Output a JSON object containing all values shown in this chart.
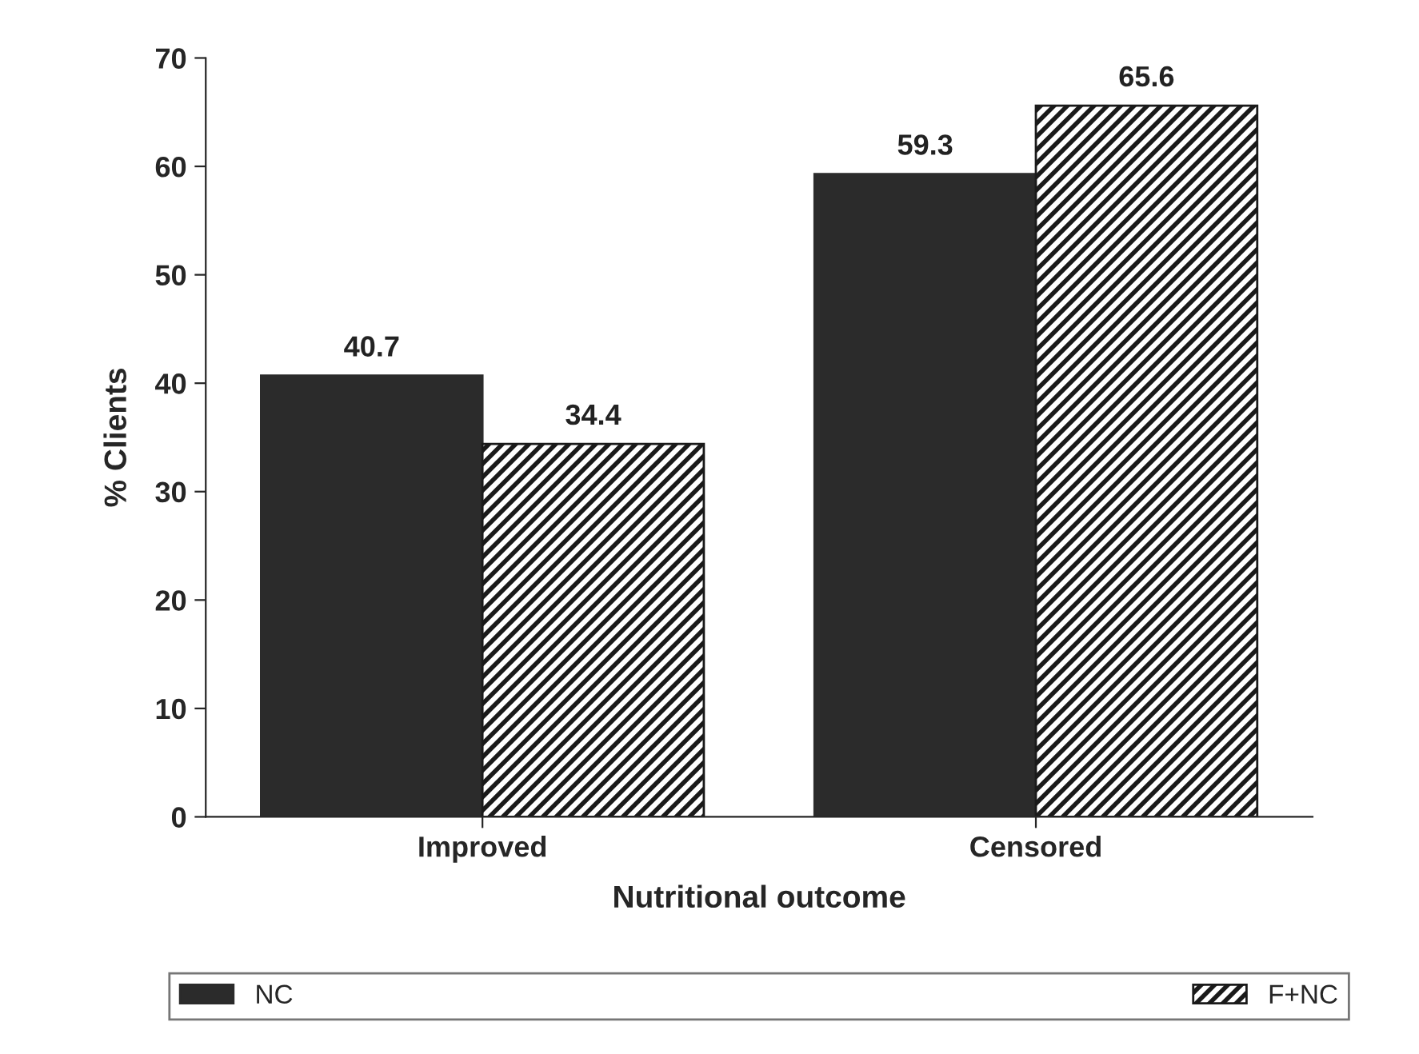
{
  "chart_data": {
    "type": "bar",
    "xlabel": "Nutritional outcome",
    "ylabel": "% Clients",
    "categories": [
      "Improved",
      "Censored"
    ],
    "series": [
      {
        "name": "NC",
        "color": "#2b2b2b",
        "values": [
          40.7,
          59.3
        ]
      },
      {
        "name": "F+NC",
        "color": "#1a1a1a",
        "values": [
          34.4,
          65.6
        ]
      }
    ],
    "ylim": [
      0,
      70
    ],
    "yticks": [
      0,
      10,
      20,
      30,
      40,
      50,
      60,
      70
    ],
    "grid": false,
    "legend": "bottom",
    "data_labels": true
  }
}
